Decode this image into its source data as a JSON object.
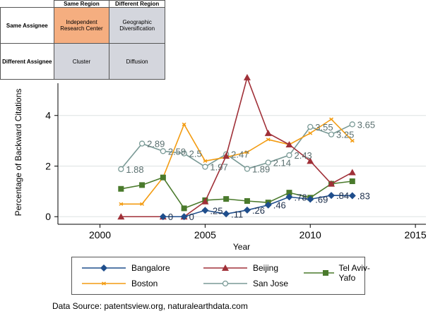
{
  "matrix": {
    "col_headers": [
      "Same Region",
      "Different Region"
    ],
    "rows": [
      {
        "label": "Same Assignee",
        "cells": [
          "Independent Research Center",
          "Geographic Diversification"
        ]
      },
      {
        "label": "Different Assignee",
        "cells": [
          "Cluster",
          "Diffusion"
        ]
      }
    ],
    "highlight_color": "#f5ae80",
    "cell_color": "#d4d6dd"
  },
  "chart_data": {
    "type": "line",
    "xlabel": "Year",
    "ylabel": "Percentage of Backward Citations",
    "xlim": [
      1998,
      2015.5
    ],
    "ylim": [
      -0.3,
      6.0
    ],
    "xticks": [
      2000,
      2005,
      2010,
      2015
    ],
    "yticks": [
      0,
      2,
      4
    ],
    "series": [
      {
        "name": "Bangalore",
        "color": "#1f4e8c",
        "marker": "diamond",
        "x": [
          2003,
          2004,
          2005,
          2006,
          2007,
          2008,
          2009,
          2010,
          2011,
          2012
        ],
        "y": [
          0,
          0,
          0.25,
          0.11,
          0.26,
          0.46,
          0.78,
          0.69,
          0.84,
          0.83
        ],
        "labels": [
          "0",
          "0",
          ".25",
          ".11",
          ".26",
          ".46",
          ".78",
          ".69",
          ".84",
          ".83"
        ]
      },
      {
        "name": "Beijing",
        "color": "#a03038",
        "marker": "triangle",
        "x": [
          2001,
          2003,
          2004,
          2005,
          2006,
          2007,
          2008,
          2009,
          2010,
          2011,
          2012
        ],
        "y": [
          0,
          0,
          0,
          0.6,
          2.4,
          5.5,
          3.3,
          2.85,
          2.2,
          1.3,
          1.75
        ],
        "labels": []
      },
      {
        "name": "Tel Aviv-Yafo",
        "color": "#4a7a2c",
        "marker": "square",
        "x": [
          2001,
          2002,
          2003,
          2004,
          2005,
          2006,
          2007,
          2008,
          2009,
          2010,
          2011,
          2012
        ],
        "y": [
          1.1,
          1.25,
          1.55,
          0.33,
          0.65,
          0.7,
          0.62,
          0.56,
          0.95,
          0.75,
          1.3,
          1.4
        ],
        "labels": []
      },
      {
        "name": "Boston",
        "color": "#f39c12",
        "marker": "x",
        "x": [
          2001,
          2002,
          2003,
          2004,
          2005,
          2006,
          2007,
          2008,
          2009,
          2010,
          2011,
          2012
        ],
        "y": [
          0.5,
          0.5,
          1.55,
          3.65,
          2.2,
          2.35,
          2.55,
          3.05,
          2.85,
          3.3,
          3.85,
          3.0
        ],
        "labels": []
      },
      {
        "name": "San Jose",
        "color": "#7a9a96",
        "marker": "circle",
        "x": [
          2001,
          2002,
          2003,
          2004,
          2005,
          2006,
          2007,
          2008,
          2009,
          2010,
          2011,
          2012
        ],
        "y": [
          1.88,
          2.89,
          2.59,
          2.5,
          1.97,
          2.47,
          1.89,
          2.14,
          2.43,
          3.55,
          3.25,
          3.65
        ],
        "labels": [
          "1.88",
          "2.89",
          "2.59",
          "2.5",
          "1.97",
          "2.47",
          "1.89",
          "2.14",
          "2.43",
          "3.55",
          "3.25",
          "3.65"
        ]
      }
    ],
    "legend_position": "bottom"
  },
  "legend": {
    "items": [
      "Bangalore",
      "Beijing",
      "Tel Aviv-Yafo",
      "Boston",
      "San Jose"
    ]
  },
  "source": "Data Source: patentsview.org, naturalearthdata.com"
}
